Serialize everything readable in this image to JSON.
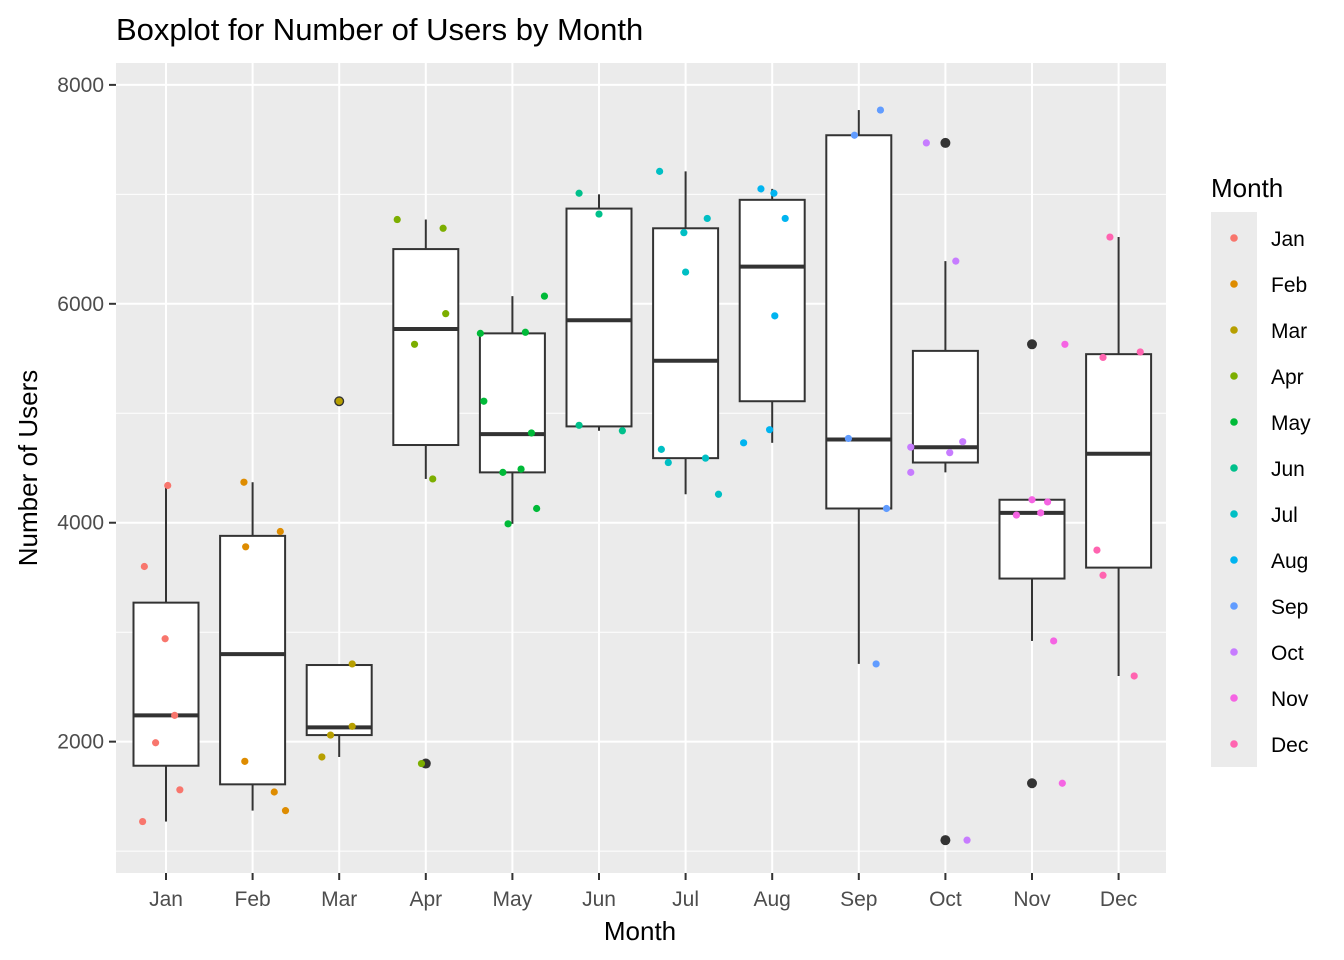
{
  "chart_data": {
    "type": "boxplot",
    "title": "Boxplot for Number of Users by Month",
    "xlabel": "Month",
    "ylabel": "Number of Users",
    "ylim": [
      800,
      8200
    ],
    "yticks": [
      2000,
      4000,
      6000,
      8000
    ],
    "ytick_labels": [
      "2000",
      "4000",
      "6000",
      "8000"
    ],
    "categories": [
      "Jan",
      "Feb",
      "Mar",
      "Apr",
      "May",
      "Jun",
      "Jul",
      "Aug",
      "Sep",
      "Oct",
      "Nov",
      "Dec"
    ],
    "grid": true,
    "legend": {
      "title": "Month",
      "placement": "right"
    },
    "colors": [
      "#F8766D",
      "#DE8C00",
      "#B79F00",
      "#7CAE00",
      "#00BA38",
      "#00C08B",
      "#00BFC4",
      "#00B4F0",
      "#619CFF",
      "#C77CFF",
      "#F564E3",
      "#FF64B0"
    ],
    "boxes": [
      {
        "q1": 1780,
        "median": 2240,
        "q3": 3270,
        "whisker_low": 1270,
        "whisker_high": 4340,
        "outliers": []
      },
      {
        "q1": 1610,
        "median": 2800,
        "q3": 3880,
        "whisker_low": 1370,
        "whisker_high": 4370,
        "outliers": []
      },
      {
        "q1": 2060,
        "median": 2130,
        "q3": 2700,
        "whisker_low": 1860,
        "whisker_high": 2700,
        "outliers": [
          5110
        ]
      },
      {
        "q1": 4710,
        "median": 5770,
        "q3": 6500,
        "whisker_low": 4400,
        "whisker_high": 6770,
        "outliers": [
          1800
        ]
      },
      {
        "q1": 4460,
        "median": 4810,
        "q3": 5730,
        "whisker_low": 3990,
        "whisker_high": 6070,
        "outliers": []
      },
      {
        "q1": 4880,
        "median": 5850,
        "q3": 6870,
        "whisker_low": 4840,
        "whisker_high": 7000,
        "outliers": []
      },
      {
        "q1": 4590,
        "median": 5480,
        "q3": 6690,
        "whisker_low": 4260,
        "whisker_high": 7210,
        "outliers": []
      },
      {
        "q1": 5110,
        "median": 6340,
        "q3": 6950,
        "whisker_low": 4730,
        "whisker_high": 7050,
        "outliers": []
      },
      {
        "q1": 4130,
        "median": 4760,
        "q3": 7540,
        "whisker_low": 2710,
        "whisker_high": 7770,
        "outliers": []
      },
      {
        "q1": 4550,
        "median": 4690,
        "q3": 5570,
        "whisker_low": 4460,
        "whisker_high": 6390,
        "outliers": [
          7470,
          1100
        ]
      },
      {
        "q1": 3490,
        "median": 4090,
        "q3": 4210,
        "whisker_low": 2920,
        "whisker_high": 4210,
        "outliers": [
          5630,
          1620
        ]
      },
      {
        "q1": 3590,
        "median": 4630,
        "q3": 5540,
        "whisker_low": 2600,
        "whisker_high": 6610,
        "outliers": []
      }
    ],
    "jitter_points": [
      [
        [
          -0.25,
          3600
        ],
        [
          0.02,
          4340
        ],
        [
          -0.01,
          2940
        ],
        [
          0.1,
          2240
        ],
        [
          -0.12,
          1990
        ],
        [
          0.16,
          1560
        ],
        [
          -0.27,
          1270
        ]
      ],
      [
        [
          -0.1,
          4370
        ],
        [
          -0.08,
          3780
        ],
        [
          0.32,
          3920
        ],
        [
          -0.09,
          1820
        ],
        [
          0.25,
          1540
        ],
        [
          0.38,
          1370
        ]
      ],
      [
        [
          0.0,
          5110
        ],
        [
          0.15,
          2710
        ],
        [
          0.15,
          2140
        ],
        [
          -0.1,
          2060
        ],
        [
          -0.2,
          1860
        ]
      ],
      [
        [
          -0.33,
          6770
        ],
        [
          0.2,
          6690
        ],
        [
          0.23,
          5910
        ],
        [
          -0.13,
          5630
        ],
        [
          0.08,
          4400
        ],
        [
          -0.05,
          1800
        ]
      ],
      [
        [
          -0.37,
          5730
        ],
        [
          0.15,
          5740
        ],
        [
          0.37,
          6070
        ],
        [
          -0.33,
          5110
        ],
        [
          0.22,
          4820
        ],
        [
          -0.11,
          4460
        ],
        [
          0.1,
          4490
        ],
        [
          0.28,
          4130
        ],
        [
          -0.05,
          3990
        ]
      ],
      [
        [
          -0.23,
          7010
        ],
        [
          0.0,
          6820
        ],
        [
          -0.23,
          4890
        ],
        [
          0.27,
          4840
        ]
      ],
      [
        [
          -0.3,
          7210
        ],
        [
          -0.02,
          6650
        ],
        [
          0.25,
          6780
        ],
        [
          0.0,
          6290
        ],
        [
          -0.28,
          4670
        ],
        [
          -0.2,
          4550
        ],
        [
          0.23,
          4590
        ],
        [
          0.38,
          4260
        ]
      ],
      [
        [
          -0.13,
          7050
        ],
        [
          0.02,
          7010
        ],
        [
          0.15,
          6780
        ],
        [
          0.03,
          5890
        ],
        [
          -0.03,
          4850
        ],
        [
          -0.33,
          4730
        ]
      ],
      [
        [
          -0.05,
          7540
        ],
        [
          0.25,
          7770
        ],
        [
          -0.12,
          4770
        ],
        [
          0.32,
          4130
        ],
        [
          0.2,
          2710
        ]
      ],
      [
        [
          -0.22,
          7470
        ],
        [
          0.12,
          6390
        ],
        [
          -0.4,
          4690
        ],
        [
          0.2,
          4740
        ],
        [
          0.05,
          4640
        ],
        [
          -0.4,
          4460
        ],
        [
          0.25,
          1100
        ]
      ],
      [
        [
          0.38,
          5630
        ],
        [
          -0.18,
          4070
        ],
        [
          0.0,
          4210
        ],
        [
          0.18,
          4190
        ],
        [
          0.1,
          4090
        ],
        [
          0.25,
          2920
        ],
        [
          0.35,
          1620
        ]
      ],
      [
        [
          -0.1,
          6610
        ],
        [
          -0.18,
          5510
        ],
        [
          0.25,
          5560
        ],
        [
          -0.25,
          3750
        ],
        [
          -0.18,
          3520
        ],
        [
          0.18,
          2600
        ]
      ]
    ]
  }
}
